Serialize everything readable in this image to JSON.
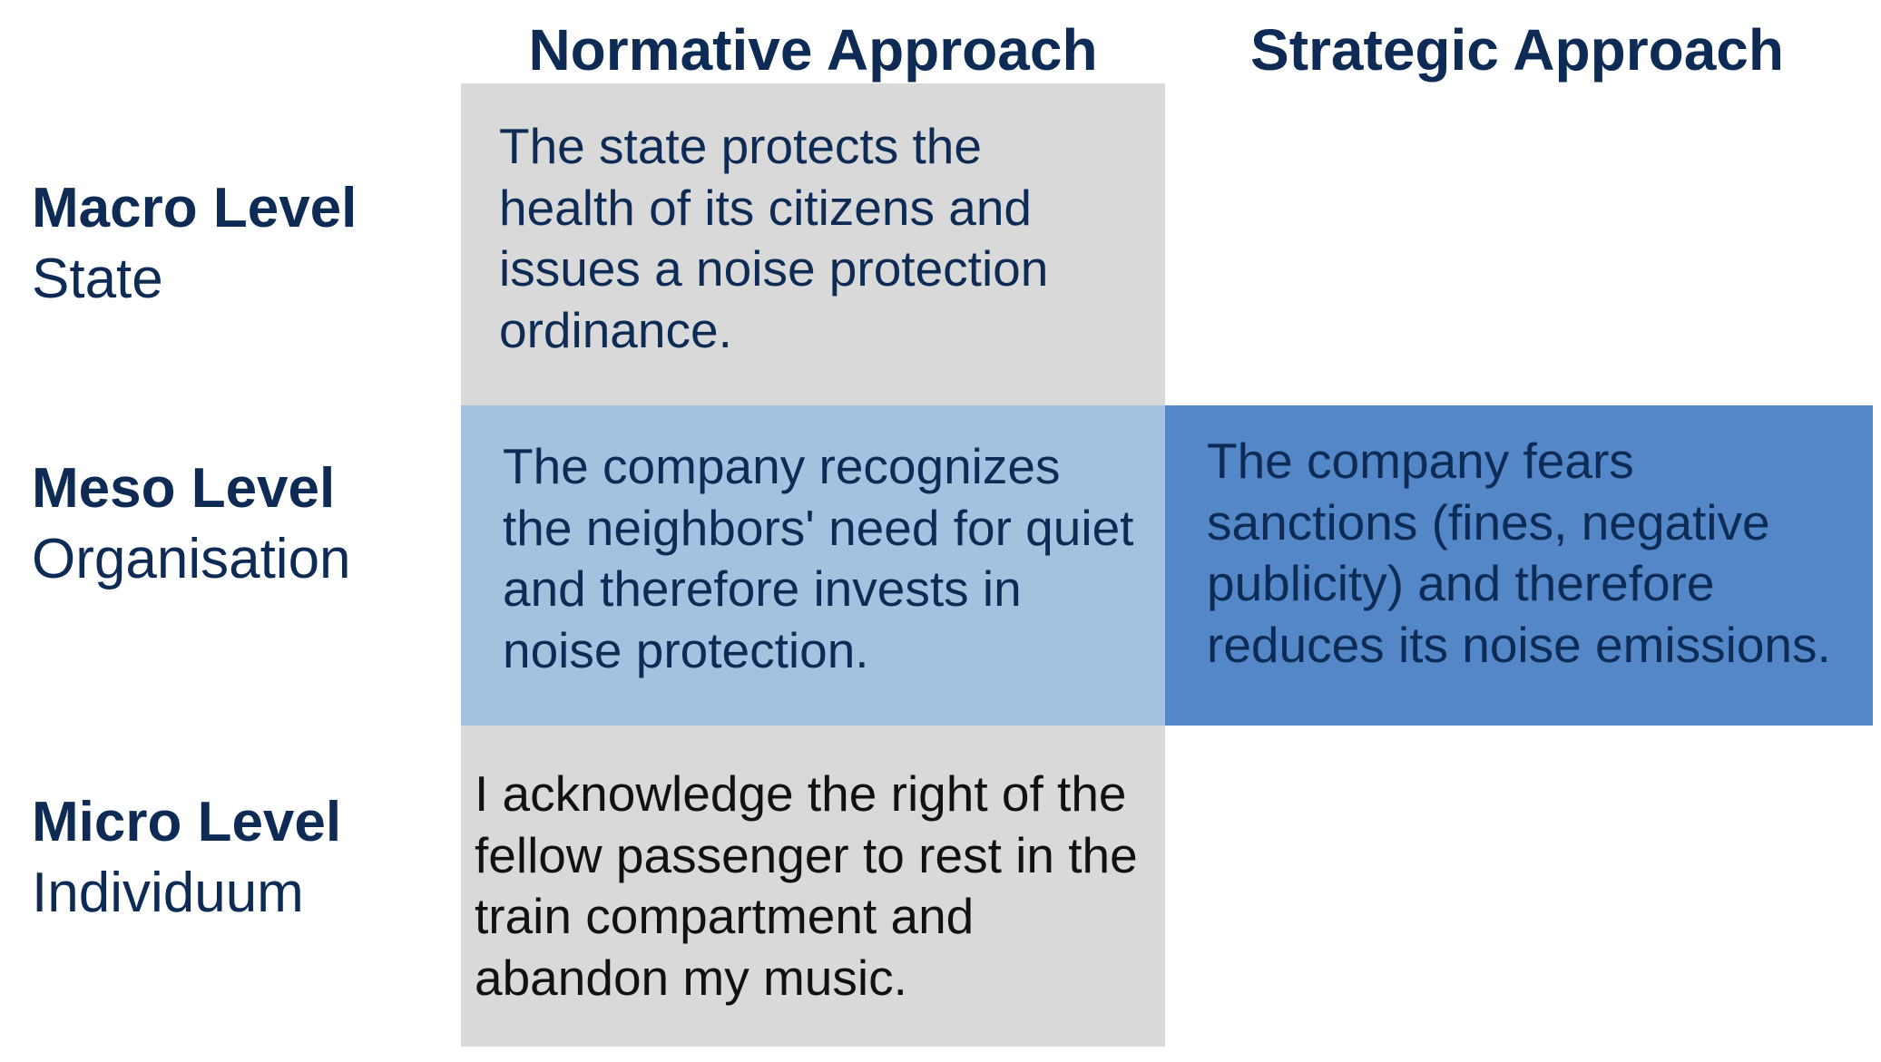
{
  "columns": {
    "normative": "Normative Approach",
    "strategic": "Strategic Approach"
  },
  "rows": {
    "macro": {
      "level": "Macro Level",
      "sub": "State"
    },
    "meso": {
      "level": "Meso Level",
      "sub": "Organisation"
    },
    "micro": {
      "level": "Micro Level",
      "sub": "Individuum"
    }
  },
  "cells": {
    "macro_normative": [
      "The state protects the",
      "health of its citizens and",
      "issues a noise protection",
      "ordinance."
    ],
    "meso_normative": [
      "The company recognizes",
      "the neighbors' need for quiet",
      "and therefore invests in",
      "noise protection."
    ],
    "meso_strategic": [
      "The company fears",
      "sanctions (fines, negative",
      "publicity) and therefore",
      "reduces its noise emissions."
    ],
    "micro_normative": [
      "I acknowledge the right of the",
      "fellow passenger to rest in the",
      "train compartment and",
      "abandon my music."
    ]
  },
  "colors": {
    "heading_text": "#0d2b55",
    "cell_gray": "#d9d9d9",
    "cell_light_blue": "#a3c2e0",
    "cell_mid_blue": "#5487c8"
  }
}
